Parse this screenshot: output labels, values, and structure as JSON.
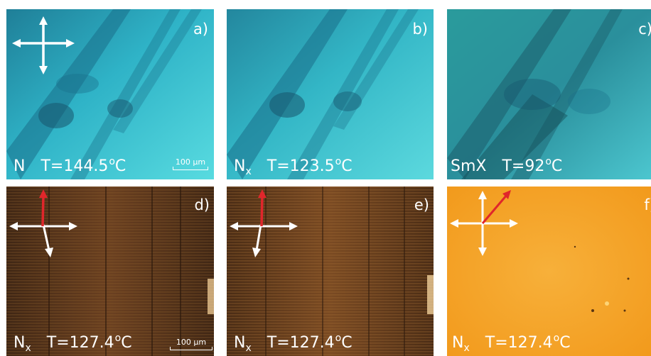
{
  "panels": [
    {
      "id": "a",
      "letter": "a)",
      "phase": "N",
      "phase_sub": "",
      "temp": "T=144.5",
      "deg": "o",
      "unit": "C",
      "scalebar": "100 µm",
      "crossed_polarizers": true,
      "red_arrow": false,
      "palette": "cyan"
    },
    {
      "id": "b",
      "letter": "b)",
      "phase": "N",
      "phase_sub": "x",
      "temp": "T=123.5",
      "deg": "o",
      "unit": "C",
      "scalebar": "",
      "crossed_polarizers": false,
      "red_arrow": false,
      "palette": "cyan"
    },
    {
      "id": "c",
      "letter": "c)",
      "phase": "SmX",
      "phase_sub": "",
      "temp": "T=92",
      "deg": "o",
      "unit": "C",
      "scalebar": "",
      "crossed_polarizers": false,
      "red_arrow": false,
      "palette": "cyan-dark"
    },
    {
      "id": "d",
      "letter": "d)",
      "phase": "N",
      "phase_sub": "x",
      "temp": "T=127.4",
      "deg": "o",
      "unit": "C",
      "scalebar": "100 µm",
      "crossed_polarizers": true,
      "red_arrow": true,
      "palette": "brown"
    },
    {
      "id": "e",
      "letter": "e)",
      "phase": "N",
      "phase_sub": "x",
      "temp": "T=127.4",
      "deg": "o",
      "unit": "C",
      "scalebar": "",
      "crossed_polarizers": true,
      "red_arrow": true,
      "palette": "brown"
    },
    {
      "id": "f",
      "letter": "f)",
      "phase": "N",
      "phase_sub": "x",
      "temp": "T=127.4",
      "deg": "o",
      "unit": "C",
      "scalebar": "",
      "crossed_polarizers": true,
      "red_arrow": true,
      "palette": "orange"
    }
  ],
  "colors": {
    "cyan_light": "#4fd6de",
    "cyan_mid": "#2fb3c7",
    "cyan_dark": "#1a6f8a",
    "brown_dark": "#3a2212",
    "brown_mid": "#7a4a22",
    "orange": "#f5a623",
    "arrow_white": "#ffffff",
    "arrow_red": "#e0262b"
  }
}
